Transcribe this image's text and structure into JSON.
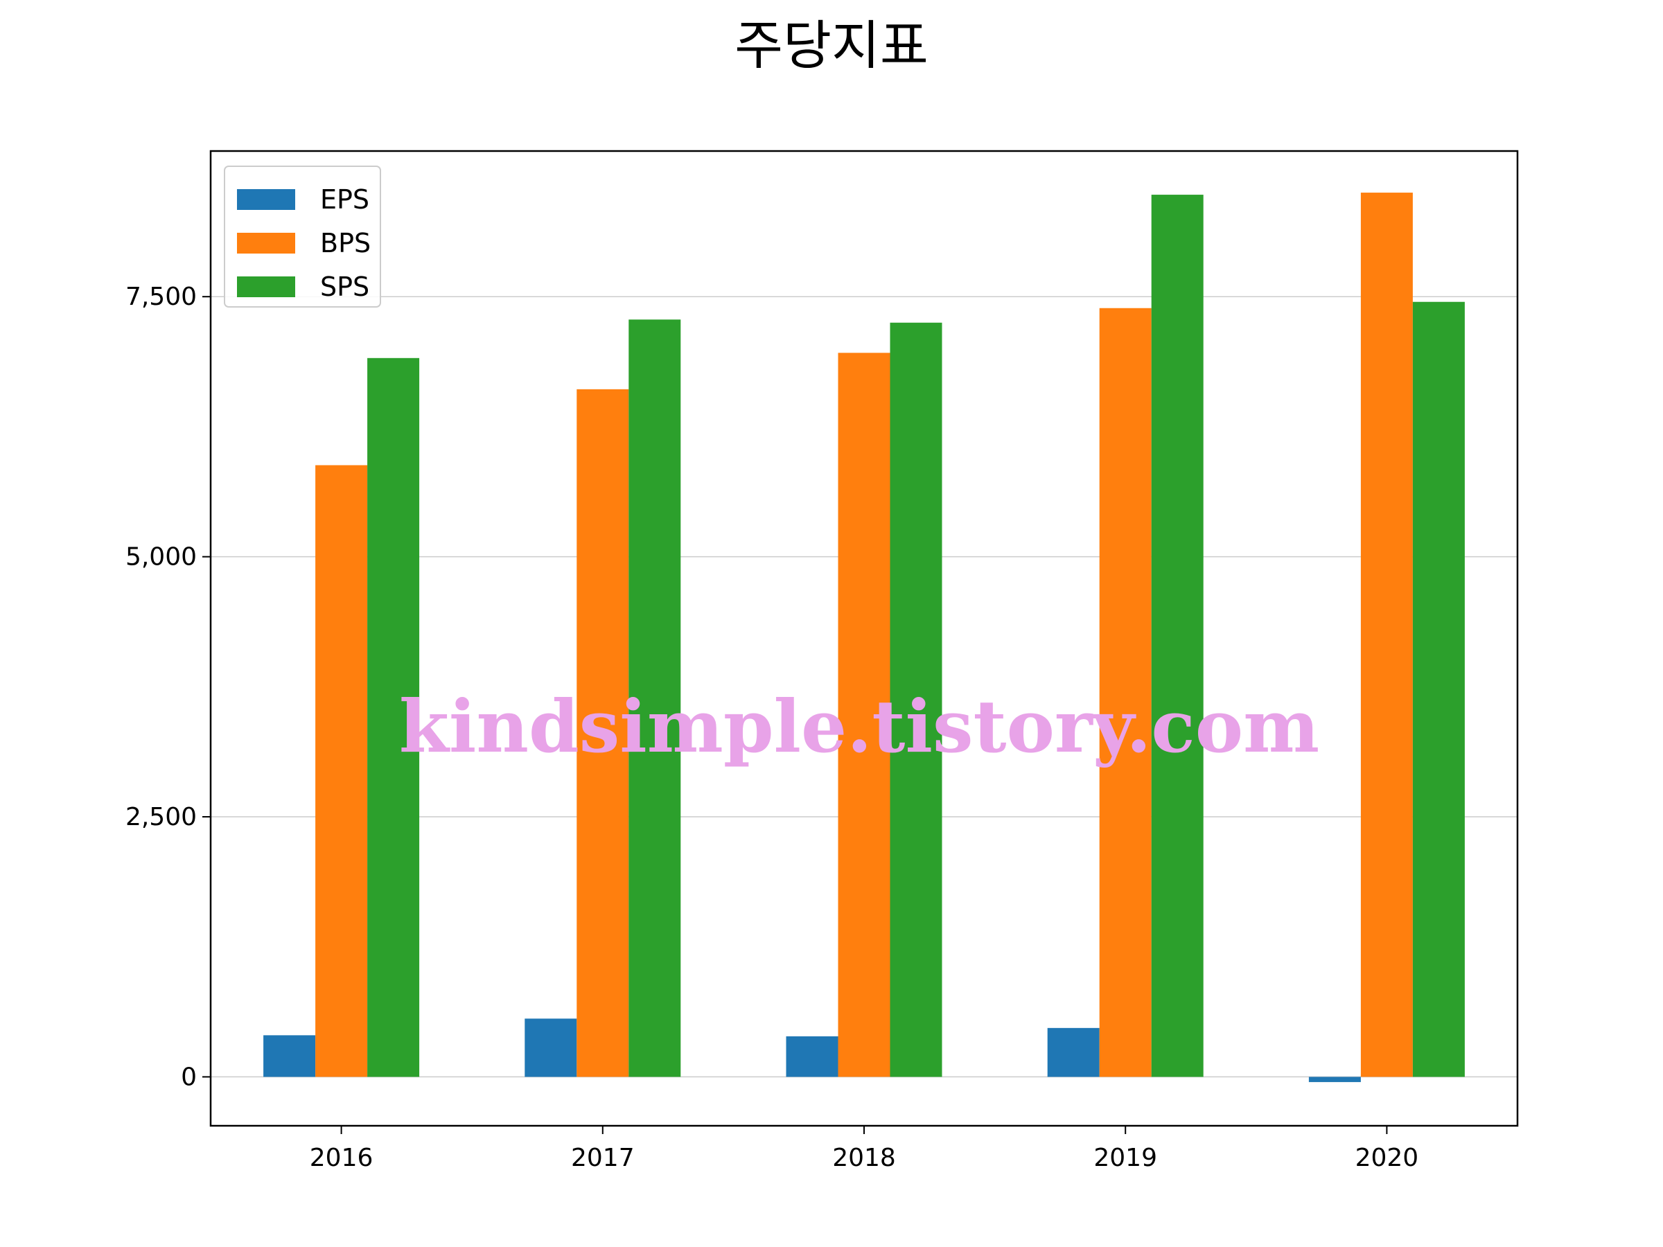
{
  "chart_data": {
    "type": "bar",
    "title": "주당지표",
    "categories": [
      "2016",
      "2017",
      "2018",
      "2019",
      "2020"
    ],
    "series": [
      {
        "name": "EPS",
        "color": "#1f77b4",
        "values": [
          400,
          560,
          390,
          470,
          -50
        ]
      },
      {
        "name": "BPS",
        "color": "#ff7f0e",
        "values": [
          5880,
          6610,
          6960,
          7390,
          8500
        ]
      },
      {
        "name": "SPS",
        "color": "#2ca02c",
        "values": [
          6910,
          7280,
          7250,
          8480,
          7450
        ]
      }
    ],
    "ylim": [
      -470,
      8900
    ],
    "yticks": [
      0,
      2500,
      5000,
      7500
    ],
    "ytick_labels": [
      "0",
      "2,500",
      "5,000",
      "7,500"
    ],
    "grid": "horizontal",
    "legend_position": "upper-left",
    "xlabel": "",
    "ylabel": ""
  },
  "watermark": "kindsimple.tistory.com"
}
